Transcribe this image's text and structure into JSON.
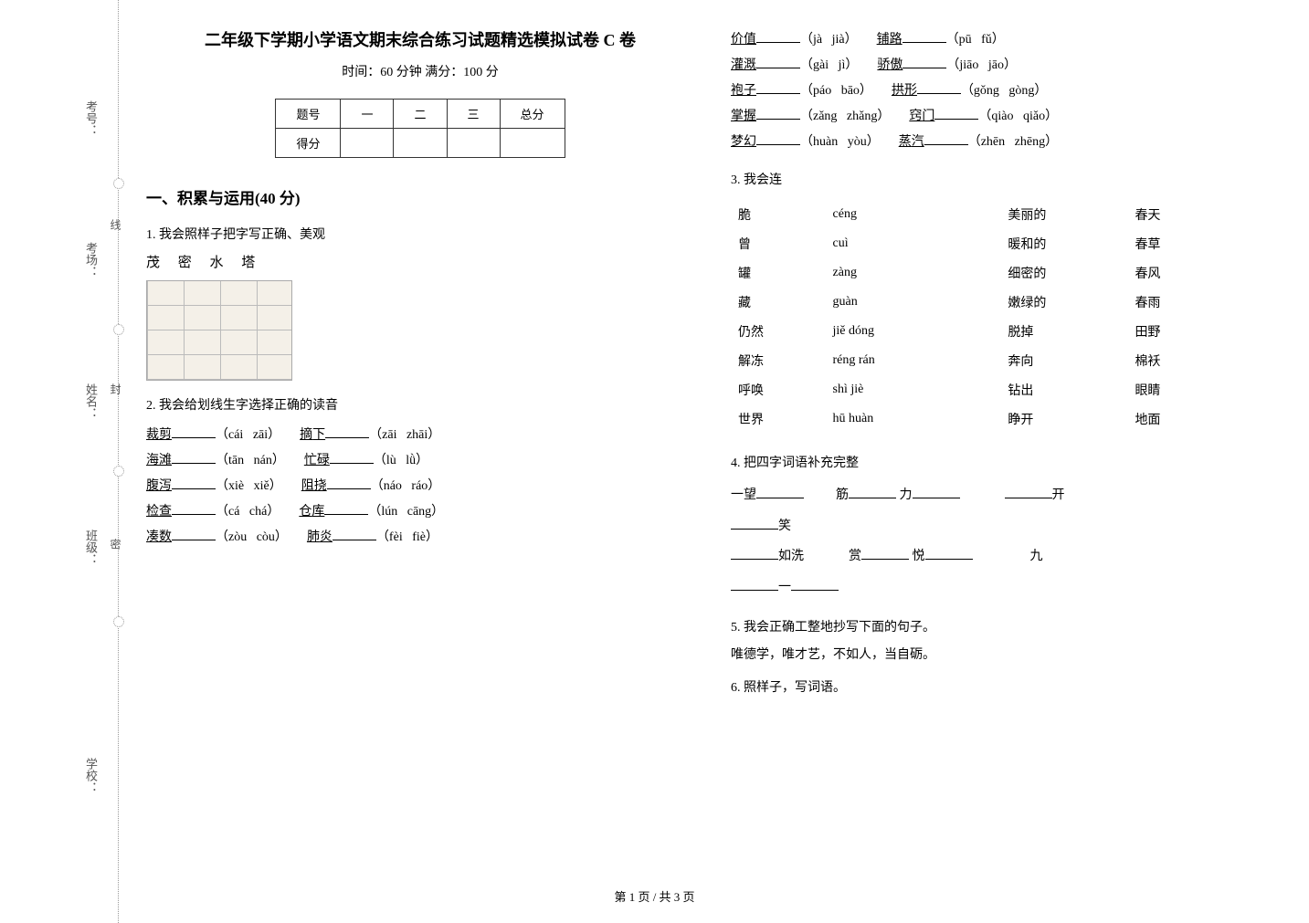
{
  "binding": {
    "labels": [
      "考号：",
      "考场：",
      "姓名：",
      "班级：",
      "学校："
    ],
    "seal_chars": [
      "线",
      "封",
      "密"
    ]
  },
  "header": {
    "title": "二年级下学期小学语文期末综合练习试题精选模拟试卷 C 卷",
    "subtitle": "时间：60 分钟   满分：100 分"
  },
  "score_table": {
    "headers": [
      "题号",
      "一",
      "二",
      "三",
      "总分"
    ],
    "row_label": "得分"
  },
  "section1": {
    "title": "一、积累与运用(40 分)",
    "q1": {
      "label": "1. 我会照样子把字写正确、美观",
      "chars": "茂 密 水 塔"
    },
    "q2": {
      "label": "2. 我会给划线生字选择正确的读音",
      "rows_left": [
        {
          "pre": "裁",
          "mid": "剪",
          "a": "cái",
          "b": "zāi"
        },
        {
          "pre": "海滩",
          "mid": "",
          "a": "tān",
          "b": "nán"
        },
        {
          "pre": "腹泻",
          "mid": "",
          "a": "xiè",
          "b": "xiě"
        },
        {
          "pre": "检查",
          "mid": "",
          "a": "cá",
          "b": "chá"
        },
        {
          "pre": "凑",
          "mid": "数",
          "a": "zòu",
          "b": "còu"
        }
      ],
      "rows_right": [
        {
          "pre": "摘",
          "mid": "下",
          "a": "zāi",
          "b": "zhāi"
        },
        {
          "pre": "忙碌",
          "mid": "",
          "a": "lù",
          "b": "lǜ"
        },
        {
          "pre": "阻挠",
          "mid": "",
          "a": "náo",
          "b": "ráo"
        },
        {
          "pre": "仓",
          "mid": "库",
          "a": "lún",
          "b": "cāng"
        },
        {
          "pre": "肺",
          "mid": "炎",
          "a": "fèi",
          "b": "fiè"
        }
      ]
    },
    "q2b_rows_left": [
      {
        "pre": "价",
        "mid": "值",
        "a": "jà",
        "b": "jià"
      },
      {
        "pre": "灌溉",
        "mid": "",
        "a": "gài",
        "b": "jì"
      },
      {
        "pre": "袍",
        "mid": "子",
        "a": "páo",
        "b": "bāo"
      },
      {
        "pre": "掌",
        "mid": "握",
        "a": "zǎng",
        "b": "zhǎng"
      },
      {
        "pre": "梦幻",
        "mid": "",
        "a": "huàn",
        "b": "yòu"
      }
    ],
    "q2b_rows_right": [
      {
        "pre": "铺",
        "mid": "路",
        "a": "pū",
        "b": "fǔ"
      },
      {
        "pre": "骄",
        "mid": "傲",
        "a": "jiāo",
        "b": "jāo"
      },
      {
        "pre": "拱",
        "mid": "形",
        "a": "gǒng",
        "b": "gòng"
      },
      {
        "pre": "窍",
        "mid": "门",
        "a": "qiào",
        "b": "qiǎo"
      },
      {
        "pre": "蒸",
        "mid": "汽",
        "a": "zhēn",
        "b": "zhēng"
      }
    ],
    "q3": {
      "label": "3. 我会连",
      "col1": [
        "脆",
        "曾",
        "罐",
        "藏",
        "仍然",
        "解冻",
        "呼唤",
        "世界"
      ],
      "col2": [
        "céng",
        "cuì",
        "zàng",
        "guàn",
        "jiě dóng",
        "réng rán",
        "shì jiè",
        "hū huàn"
      ],
      "col3": [
        "美丽的",
        "暖和的",
        "细密的",
        "嫩绿的",
        "脱掉",
        "奔向",
        "钻出",
        "睁开"
      ],
      "col4": [
        "春天",
        "春草",
        "春风",
        "春雨",
        "田野",
        "棉袄",
        "眼睛",
        "地面"
      ]
    },
    "q4": {
      "label": "4. 把四字词语补充完整",
      "lines": [
        [
          "一望",
          "筋",
          "力",
          "",
          "开"
        ],
        [
          "",
          "笑"
        ],
        [
          "",
          "如洗",
          "赏",
          "悦",
          "",
          "九"
        ],
        [
          "",
          "一",
          ""
        ]
      ]
    },
    "q5": {
      "label": "5. 我会正确工整地抄写下面的句子。",
      "sentence": "唯德学，唯才艺，不如人，当自砺。"
    },
    "q6": {
      "label": "6. 照样子，写词语。"
    }
  },
  "footer": "第 1 页  /  共 3 页"
}
